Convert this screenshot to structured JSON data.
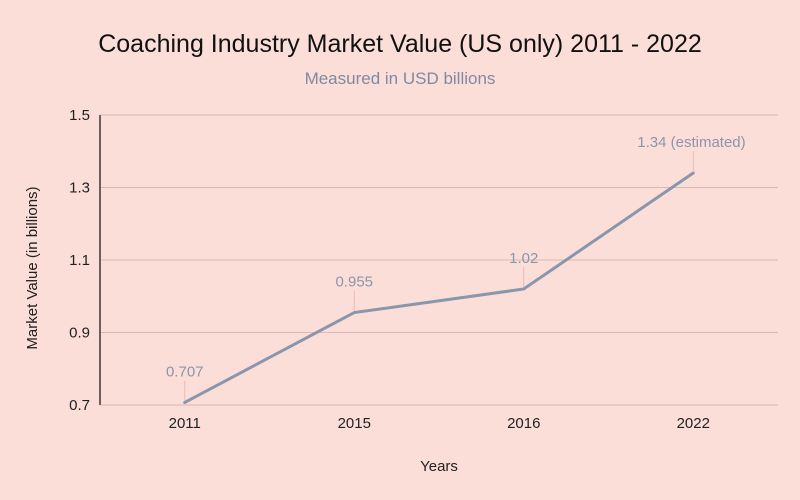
{
  "chart_data": {
    "type": "line",
    "title": "Coaching Industry Market Value (US only) 2011 - 2022",
    "subtitle": "Measured in USD billions",
    "xlabel": "Years",
    "ylabel": "Market Value (in billions)",
    "categories": [
      "2011",
      "2015",
      "2016",
      "2022"
    ],
    "series": [
      {
        "name": "Market Value",
        "values": [
          0.707,
          0.955,
          1.02,
          1.34
        ],
        "data_labels": [
          "0.707",
          "0.955",
          "1.02",
          "1.34 (estimated)"
        ]
      }
    ],
    "ylim": [
      0.7,
      1.5
    ],
    "yticks": [
      0.7,
      0.9,
      1.1,
      1.3,
      1.5
    ],
    "ytick_labels": [
      "0.7",
      "0.9",
      "1.1",
      "1.3",
      "1.5"
    ],
    "grid": true,
    "colors": {
      "background": "#fcded8",
      "line": "#8a96ab",
      "grid": "#d9b8b8",
      "label": "#8a96ab",
      "title": "#111111",
      "subtitle": "#7f8aa0"
    }
  }
}
